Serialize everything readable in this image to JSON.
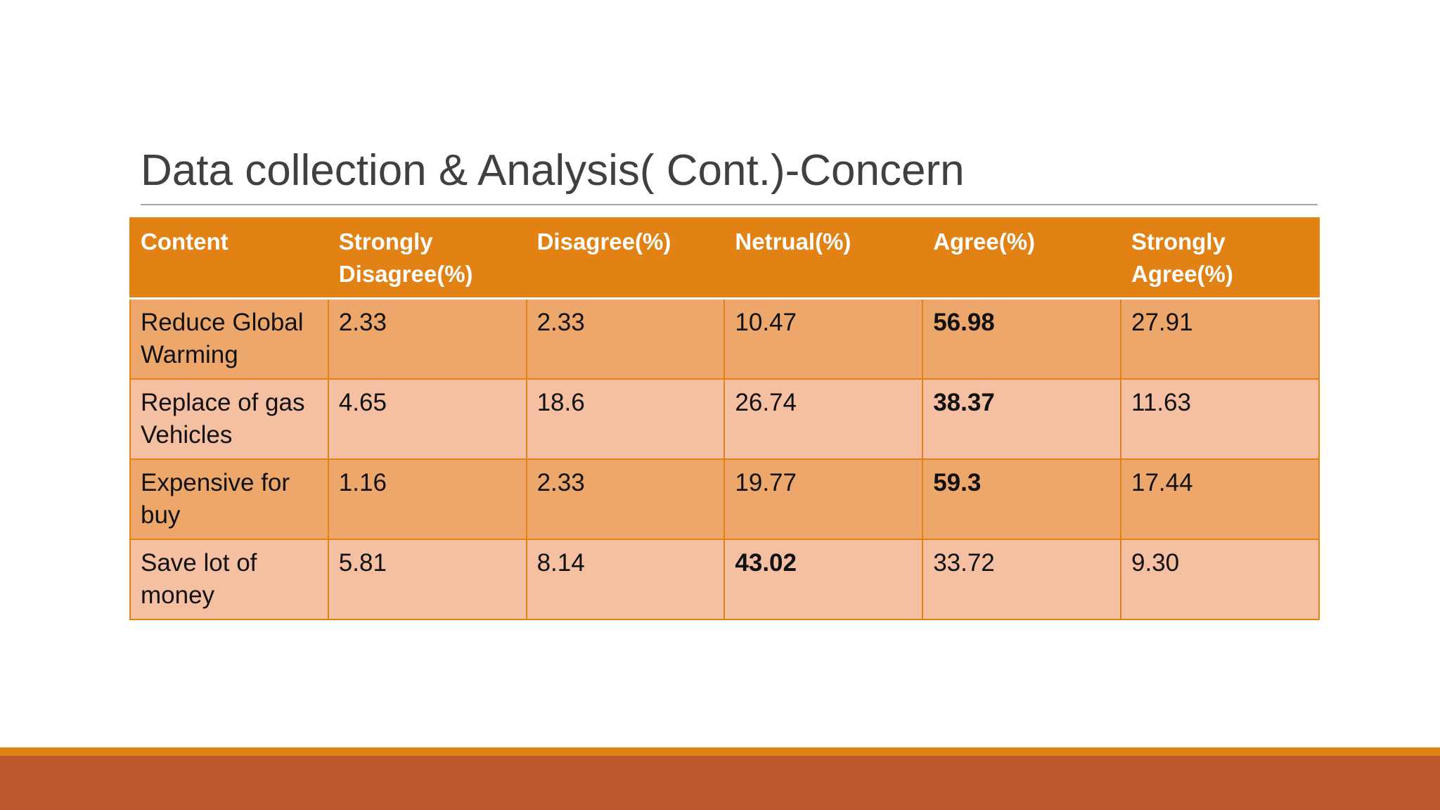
{
  "slide": {
    "title": "Data collection & Analysis( Cont.)-Concern"
  },
  "table": {
    "headers": [
      "Content",
      "Strongly Disagree(%)",
      "Disagree(%)",
      "Netrual(%)",
      "Agree(%)",
      "Strongly Agree(%)"
    ],
    "rows": [
      {
        "cells": [
          "Reduce Global Warming",
          "2.33",
          "2.33",
          "10.47",
          "56.98",
          "27.91"
        ],
        "bold_column": 4
      },
      {
        "cells": [
          "Replace of gas Vehicles",
          "4.65",
          "18.6",
          "26.74",
          "38.37",
          "11.63"
        ],
        "bold_column": 4
      },
      {
        "cells": [
          "Expensive for buy",
          "1.16",
          "2.33",
          "19.77",
          "59.3",
          "17.44"
        ],
        "bold_column": 4
      },
      {
        "cells": [
          "Save lot of money",
          "5.81",
          "8.14",
          "43.02",
          "33.72",
          "9.30"
        ],
        "bold_column": 3
      }
    ]
  },
  "colors": {
    "header_fill": "#e38214",
    "row_odd_fill": "#eda76b",
    "row_even_fill": "#f5bfa2",
    "footer_accent": "#e38214",
    "footer_bar": "#bd582c",
    "title_text": "#404040"
  }
}
